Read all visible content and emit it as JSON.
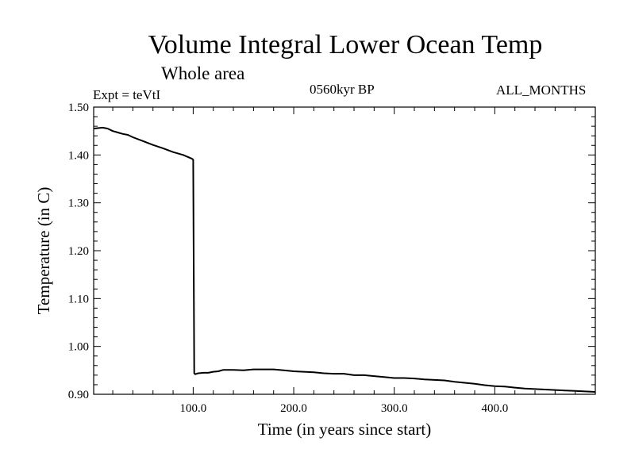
{
  "header": {
    "title": "Volume Integral Lower Ocean Temp",
    "subtitle": "Whole area",
    "expt": "Expt = teVtI",
    "period": "0560kyr BP",
    "months": "ALL_MONTHS"
  },
  "chart_data": {
    "type": "line",
    "title": "Volume Integral Lower Ocean Temp",
    "subtitle": "Whole area",
    "xlabel": "Time (in years since start)",
    "ylabel": "Temperature (in C)",
    "xlim": [
      1,
      500
    ],
    "ylim": [
      0.9,
      1.5
    ],
    "x_ticks": [
      100,
      200,
      300,
      400
    ],
    "x_tick_labels": [
      "100.0",
      "200.0",
      "300.0",
      "400.0"
    ],
    "y_ticks": [
      0.9,
      1.0,
      1.1,
      1.2,
      1.3,
      1.4,
      1.5
    ],
    "y_tick_labels": [
      "0.90",
      "1.00",
      "1.10",
      "1.20",
      "1.30",
      "1.40",
      "1.50"
    ],
    "grid": false,
    "series": [
      {
        "x": [
          1,
          5,
          10,
          15,
          20,
          25,
          30,
          35,
          40,
          50,
          60,
          70,
          80,
          90,
          99,
          100,
          101,
          102,
          105,
          110,
          115,
          120,
          125,
          130,
          140,
          150,
          160,
          170,
          180,
          190,
          200,
          210,
          220,
          230,
          240,
          250,
          260,
          270,
          280,
          290,
          300,
          310,
          320,
          330,
          340,
          350,
          360,
          370,
          380,
          390,
          400,
          410,
          420,
          430,
          440,
          450,
          460,
          470,
          480,
          490,
          500
        ],
        "y": [
          1.455,
          1.456,
          1.457,
          1.455,
          1.45,
          1.447,
          1.444,
          1.442,
          1.437,
          1.429,
          1.421,
          1.414,
          1.406,
          1.4,
          1.392,
          1.39,
          0.944,
          0.942,
          0.944,
          0.945,
          0.945,
          0.947,
          0.948,
          0.951,
          0.951,
          0.95,
          0.952,
          0.952,
          0.952,
          0.95,
          0.948,
          0.947,
          0.946,
          0.944,
          0.943,
          0.943,
          0.94,
          0.94,
          0.938,
          0.936,
          0.934,
          0.934,
          0.933,
          0.931,
          0.93,
          0.929,
          0.926,
          0.924,
          0.922,
          0.919,
          0.917,
          0.916,
          0.914,
          0.912,
          0.911,
          0.91,
          0.909,
          0.908,
          0.907,
          0.906,
          0.905
        ]
      }
    ]
  }
}
